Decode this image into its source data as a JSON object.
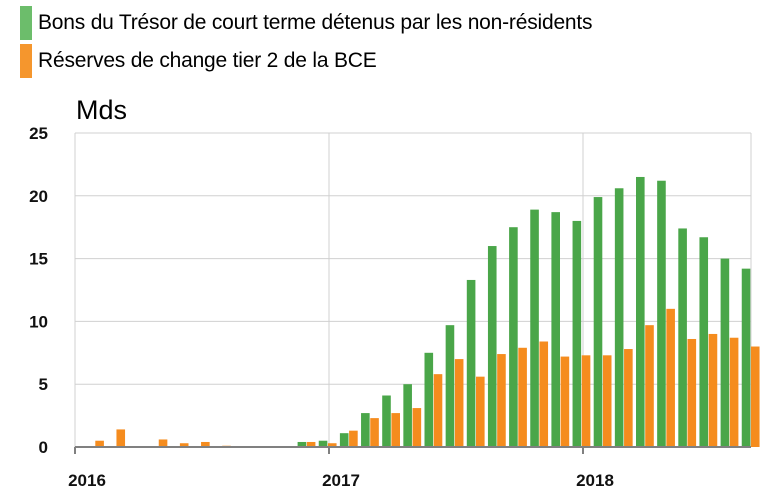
{
  "chart_data": {
    "type": "bar",
    "ylabel": "Mds",
    "ylim": [
      0,
      25
    ],
    "yticks": [
      "0",
      "5",
      "10",
      "15",
      "20",
      "25"
    ],
    "xlabels": [
      "2016",
      "2017",
      "2018"
    ],
    "legend_placement": "top-left",
    "grid": true,
    "colors": {
      "green": "#4aa649",
      "orange": "#f58c1e",
      "grid": "#d0d0d0",
      "axis": "#808080"
    },
    "series": [
      {
        "name": "Bons du Trésor de court terme détenus par les non-résidents",
        "values": [
          0,
          0,
          0,
          0,
          0,
          0,
          0,
          0,
          0,
          0,
          0.4,
          0.5,
          1.1,
          2.7,
          4.1,
          5.0,
          7.5,
          9.7,
          13.3,
          16.0,
          17.5,
          18.9,
          18.7,
          18.0,
          19.9,
          20.6,
          21.5,
          21.2,
          17.4,
          16.7,
          15.0,
          14.2
        ]
      },
      {
        "name": "Réserves de change tier 2 de la BCE",
        "values": [
          0.5,
          1.4,
          0,
          0.6,
          0.3,
          0.4,
          0.1,
          0,
          0,
          0,
          0.4,
          0.3,
          1.3,
          2.3,
          2.7,
          3.1,
          5.8,
          7.0,
          5.6,
          7.4,
          7.9,
          8.4,
          7.2,
          7.3,
          7.3,
          7.8,
          9.7,
          11.0,
          8.6,
          9.0,
          8.7,
          8.0
        ]
      }
    ],
    "period_labels": [
      "2016-02",
      "2016-03",
      "2016-04",
      "2016-05",
      "2016-06",
      "2016-07",
      "2016-08",
      "2016-09",
      "2016-10",
      "2016-11",
      "2016-12",
      "2017-01",
      "2017-02",
      "2017-03",
      "2017-04",
      "2017-05",
      "2017-06",
      "2017-07",
      "2017-08",
      "2017-09",
      "2017-10",
      "2017-11",
      "2017-12",
      "2018-01",
      "2018-02",
      "2018-03",
      "2018-04",
      "2018-05",
      "2018-06",
      "2018-07",
      "2018-08",
      "2018-09"
    ]
  }
}
